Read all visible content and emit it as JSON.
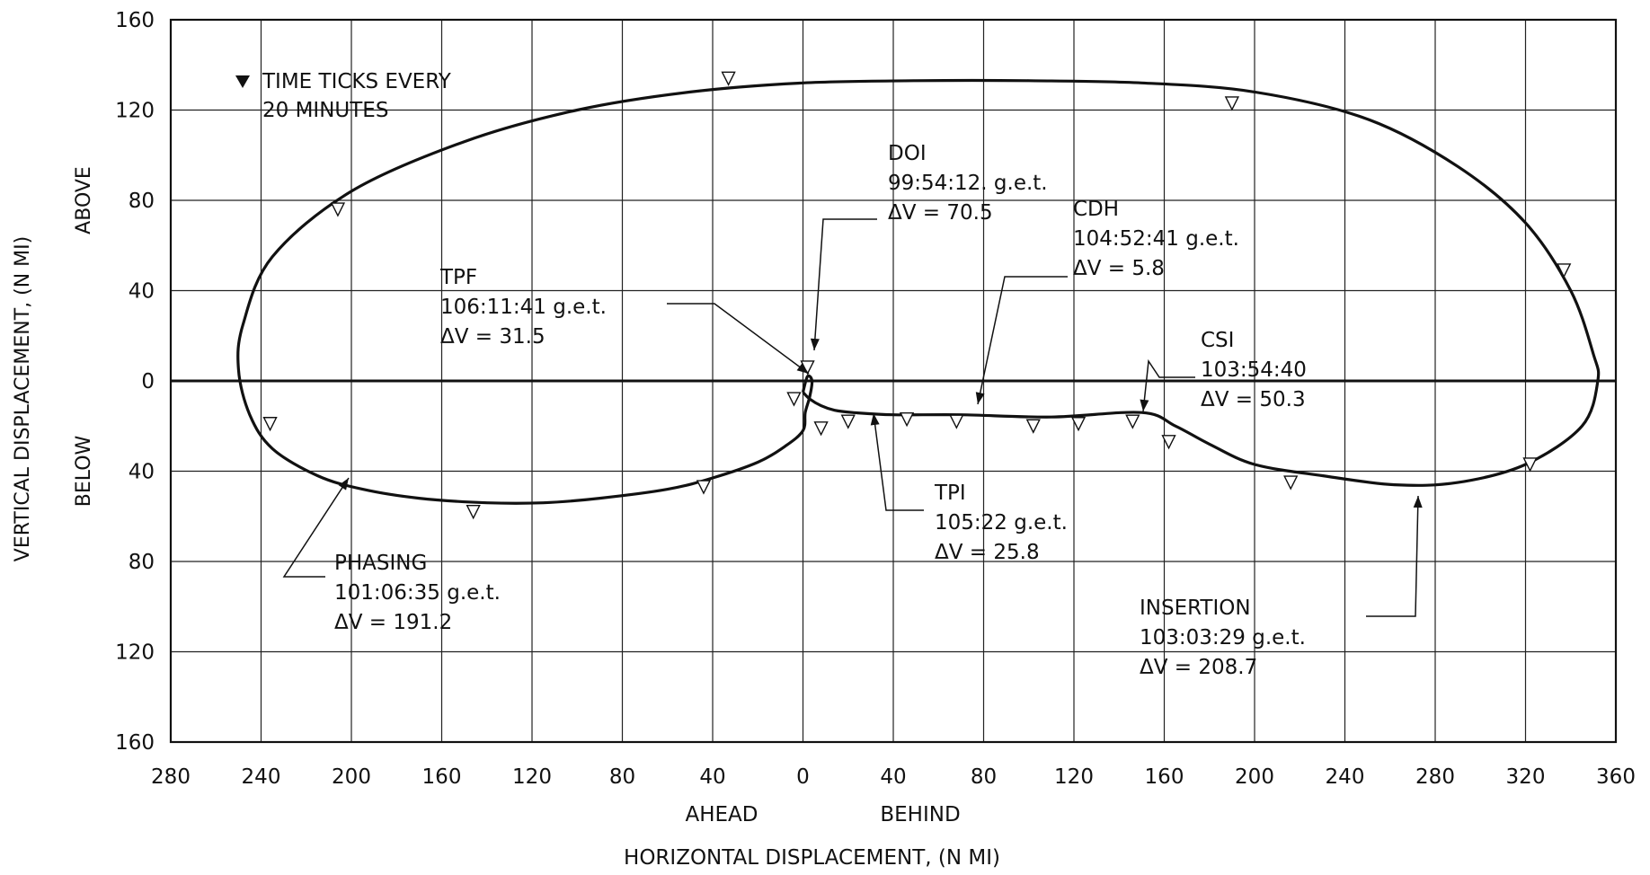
{
  "chart_data": {
    "type": "line",
    "title": "",
    "xlabel": "HORIZONTAL DISPLACEMENT, (N MI)",
    "x_side_labels": {
      "left": "AHEAD",
      "right": "BEHIND"
    },
    "ylabel": "VERTICAL DISPLACEMENT, (N MI)",
    "y_side_labels": {
      "top": "ABOVE",
      "bottom": "BELOW"
    },
    "xlim": [
      -280,
      360
    ],
    "ylim": [
      -160,
      160
    ],
    "x_ticks": [
      -280,
      -240,
      -200,
      -160,
      -120,
      -80,
      -40,
      0,
      40,
      80,
      120,
      160,
      200,
      240,
      280,
      320,
      360
    ],
    "x_tick_labels": [
      "280",
      "240",
      "200",
      "160",
      "120",
      "80",
      "40",
      "0",
      "40",
      "80",
      "120",
      "160",
      "200",
      "240",
      "280",
      "320",
      "360"
    ],
    "y_ticks": [
      160,
      120,
      80,
      40,
      0,
      -40,
      -80,
      -120,
      -160
    ],
    "y_tick_labels": [
      "160",
      "120",
      "80",
      "40",
      "0",
      "40",
      "80",
      "120",
      "160"
    ],
    "grid": true,
    "legend": {
      "text_line1": "TIME TICKS EVERY",
      "text_line2": "20 MINUTES",
      "placement": "top-left"
    },
    "series": [
      {
        "x": [
          0,
          3,
          8,
          14,
          22,
          40,
          70,
          110,
          150,
          165,
          180,
          200,
          230,
          262,
          290,
          320,
          345,
          352,
          350,
          340,
          320,
          290,
          250,
          200,
          150,
          100,
          50,
          0,
          -50,
          -100,
          -150,
          -200,
          -235,
          -248,
          -250,
          -245,
          -235,
          -215,
          -195,
          -170,
          -140,
          -115,
          -90,
          -60,
          -40,
          -20,
          -8,
          0,
          1,
          3,
          4,
          2,
          0
        ],
        "y": [
          -5,
          -8,
          -11,
          -13,
          -14,
          -15,
          -15,
          -16,
          -14,
          -20,
          -28,
          -37,
          -42,
          -46,
          -45,
          -37,
          -20,
          0,
          12,
          40,
          70,
          95,
          116,
          128,
          132,
          133,
          133,
          132,
          128,
          120,
          106,
          84,
          55,
          25,
          5,
          -15,
          -30,
          -42,
          -48,
          -52,
          -54,
          -54,
          -52,
          -48,
          -43,
          -36,
          -29,
          -22,
          -14,
          -7,
          0,
          2,
          -5
        ]
      }
    ],
    "time_ticks": [
      {
        "x": -33,
        "y": 134
      },
      {
        "x": 190,
        "y": 123
      },
      {
        "x": -206,
        "y": 76
      },
      {
        "x": 337,
        "y": 49
      },
      {
        "x": 2,
        "y": 6
      },
      {
        "x": -236,
        "y": -19
      },
      {
        "x": -4,
        "y": -8
      },
      {
        "x": 8,
        "y": -21
      },
      {
        "x": 20,
        "y": -18
      },
      {
        "x": 46,
        "y": -17
      },
      {
        "x": 68,
        "y": -18
      },
      {
        "x": 102,
        "y": -20
      },
      {
        "x": 122,
        "y": -19
      },
      {
        "x": 146,
        "y": -18
      },
      {
        "x": 162,
        "y": -27
      },
      {
        "x": 216,
        "y": -45
      },
      {
        "x": 322,
        "y": -37
      },
      {
        "x": -44,
        "y": -47
      },
      {
        "x": -146,
        "y": -58
      }
    ],
    "annotations": [
      {
        "name": "DOI",
        "time": "99:54:12. g.e.t.",
        "dv": "ΔV = 70.5"
      },
      {
        "name": "CDH",
        "time": "104:52:41 g.e.t.",
        "dv": "ΔV = 5.8"
      },
      {
        "name": "TPF",
        "time": "106:11:41 g.e.t.",
        "dv": "ΔV = 31.5"
      },
      {
        "name": "CSI",
        "time": "103:54:40",
        "dv": "ΔV = 50.3"
      },
      {
        "name": "TPI",
        "time": "105:22 g.e.t.",
        "dv": "ΔV = 25.8"
      },
      {
        "name": "PHASING",
        "time": "101:06:35 g.e.t.",
        "dv": "ΔV = 191.2"
      },
      {
        "name": "INSERTION",
        "time": "103:03:29 g.e.t.",
        "dv": "ΔV = 208.7"
      }
    ]
  }
}
